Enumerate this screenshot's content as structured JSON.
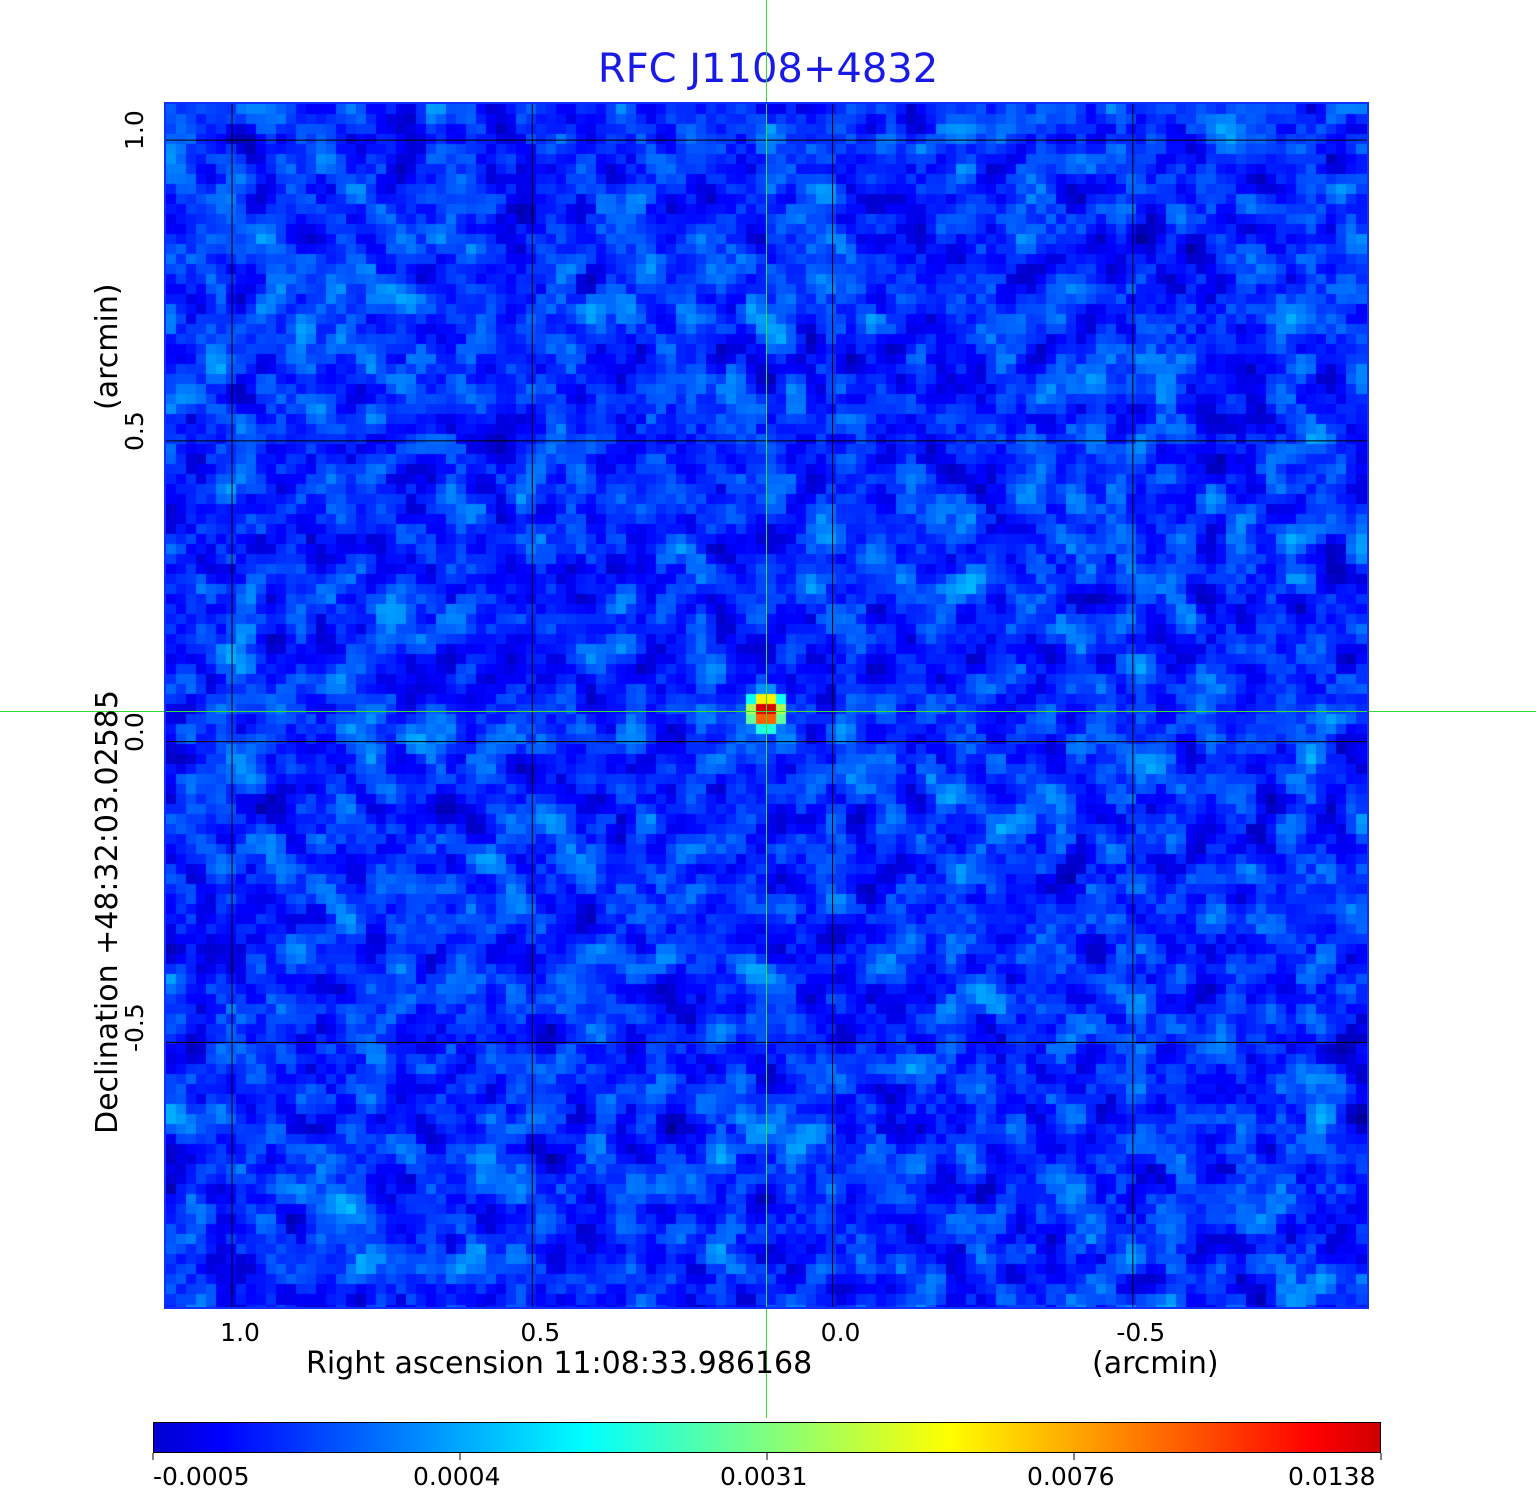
{
  "chart_data": {
    "type": "heatmap",
    "title": "RFC J1108+4832",
    "xlabel": "Right ascension  11:08:33.986168",
    "xunit": "(arcmin)",
    "ylabel": "Declination  +48:32:03.02585",
    "yunit": "(arcmin)",
    "xlim": [
      1.11,
      -0.89
    ],
    "ylim": [
      -0.94,
      1.06
    ],
    "x_ticks": [
      "1.0",
      "0.5",
      "0.0",
      "-0.5"
    ],
    "x_tick_values": [
      1.0,
      0.5,
      0.0,
      -0.5
    ],
    "y_ticks": [
      "1.0",
      "0.5",
      "0.0",
      "-0.5"
    ],
    "y_tick_values": [
      1.0,
      0.5,
      0.0,
      -0.5
    ],
    "grid": true,
    "colormap": "jet",
    "colorbar": {
      "placement": "bottom",
      "ticks": [
        "-0.0005",
        "0.0004",
        "0.0031",
        "0.0076",
        "0.0138"
      ],
      "range": [
        -0.0005,
        0.0138
      ]
    },
    "source": {
      "x": 0.11,
      "y": 0.05,
      "peak": 0.0138
    },
    "crosshair": {
      "x": 0.11,
      "y": 0.05,
      "color": "#33dd33"
    },
    "title_color": "#1a1ae6",
    "frame_color": "#1030ff"
  }
}
